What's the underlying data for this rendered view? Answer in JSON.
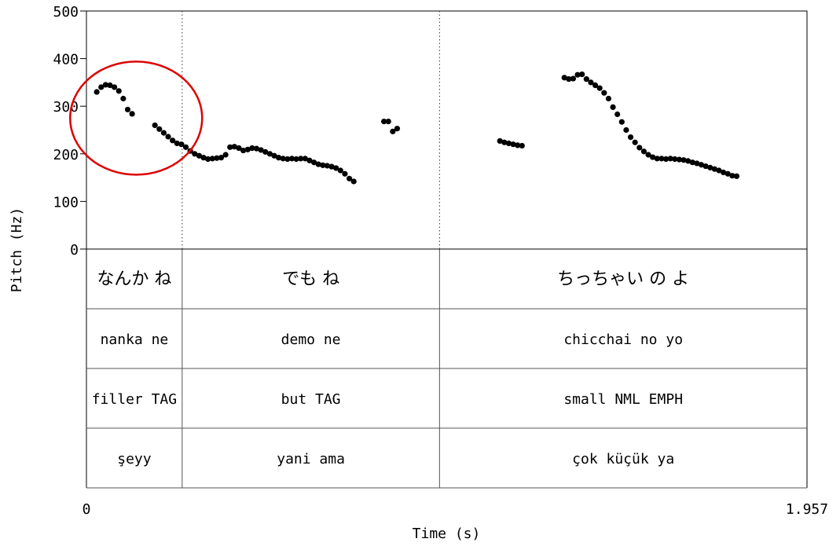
{
  "chart_data": {
    "type": "scatter",
    "title": "",
    "xlabel": "Time (s)",
    "ylabel": "Pitch (Hz)",
    "xlim": [
      0,
      1.957
    ],
    "ylim": [
      0,
      500
    ],
    "y_ticks": [
      "500",
      "400",
      "300",
      "200",
      "100",
      "0"
    ],
    "y_tick_values": [
      500,
      400,
      300,
      200,
      100,
      0
    ],
    "x_tick_labels": [
      "0",
      "1.957"
    ],
    "interval_boundaries": [
      0.26,
      0.959
    ],
    "series": [
      {
        "values": [
          [
            0.028,
            330
          ],
          [
            0.04,
            340
          ],
          [
            0.052,
            345
          ],
          [
            0.064,
            344
          ],
          [
            0.076,
            340
          ],
          [
            0.088,
            332
          ],
          [
            0.1,
            316
          ],
          [
            0.112,
            293
          ],
          [
            0.124,
            284
          ],
          [
            0.186,
            260
          ],
          [
            0.198,
            252
          ],
          [
            0.21,
            244
          ],
          [
            0.222,
            236
          ],
          [
            0.234,
            228
          ],
          [
            0.246,
            222
          ],
          [
            0.258,
            220
          ],
          [
            0.27,
            214
          ],
          [
            0.282,
            206
          ],
          [
            0.294,
            200
          ],
          [
            0.306,
            196
          ],
          [
            0.318,
            192
          ],
          [
            0.33,
            189
          ],
          [
            0.342,
            190
          ],
          [
            0.354,
            191
          ],
          [
            0.366,
            192
          ],
          [
            0.378,
            198
          ],
          [
            0.39,
            214
          ],
          [
            0.402,
            215
          ],
          [
            0.414,
            212
          ],
          [
            0.426,
            207
          ],
          [
            0.438,
            209
          ],
          [
            0.45,
            212
          ],
          [
            0.462,
            211
          ],
          [
            0.474,
            208
          ],
          [
            0.486,
            204
          ],
          [
            0.498,
            200
          ],
          [
            0.51,
            196
          ],
          [
            0.522,
            192
          ],
          [
            0.534,
            190
          ],
          [
            0.546,
            189
          ],
          [
            0.558,
            190
          ],
          [
            0.57,
            189
          ],
          [
            0.582,
            190
          ],
          [
            0.594,
            190
          ],
          [
            0.606,
            186
          ],
          [
            0.618,
            182
          ],
          [
            0.63,
            178
          ],
          [
            0.642,
            176
          ],
          [
            0.654,
            175
          ],
          [
            0.666,
            173
          ],
          [
            0.678,
            170
          ],
          [
            0.69,
            165
          ],
          [
            0.702,
            158
          ],
          [
            0.714,
            148
          ],
          [
            0.726,
            142
          ],
          [
            0.808,
            268
          ],
          [
            0.82,
            268
          ],
          [
            0.832,
            247
          ],
          [
            0.844,
            253
          ],
          [
            1.123,
            227
          ],
          [
            1.135,
            224
          ],
          [
            1.147,
            222
          ],
          [
            1.159,
            220
          ],
          [
            1.171,
            218
          ],
          [
            1.183,
            217
          ],
          [
            1.298,
            360
          ],
          [
            1.31,
            357
          ],
          [
            1.322,
            358
          ],
          [
            1.334,
            366
          ],
          [
            1.346,
            367
          ],
          [
            1.358,
            357
          ],
          [
            1.37,
            350
          ],
          [
            1.382,
            344
          ],
          [
            1.394,
            338
          ],
          [
            1.406,
            328
          ],
          [
            1.418,
            316
          ],
          [
            1.43,
            298
          ],
          [
            1.442,
            283
          ],
          [
            1.454,
            267
          ],
          [
            1.466,
            250
          ],
          [
            1.478,
            235
          ],
          [
            1.49,
            224
          ],
          [
            1.502,
            213
          ],
          [
            1.514,
            205
          ],
          [
            1.526,
            198
          ],
          [
            1.538,
            193
          ],
          [
            1.55,
            190
          ],
          [
            1.562,
            190
          ],
          [
            1.574,
            189
          ],
          [
            1.586,
            190
          ],
          [
            1.598,
            189
          ],
          [
            1.61,
            188
          ],
          [
            1.622,
            187
          ],
          [
            1.634,
            185
          ],
          [
            1.646,
            182
          ],
          [
            1.658,
            180
          ],
          [
            1.67,
            177
          ],
          [
            1.682,
            174
          ],
          [
            1.694,
            171
          ],
          [
            1.706,
            168
          ],
          [
            1.718,
            165
          ],
          [
            1.73,
            161
          ],
          [
            1.742,
            158
          ],
          [
            1.754,
            154
          ],
          [
            1.766,
            153
          ]
        ]
      }
    ],
    "annotation": {
      "shape": "circle",
      "color": "#dd0000",
      "center": [
        0.135,
        275
      ]
    }
  },
  "tiers": [
    {
      "name": "japanese",
      "labels": [
        "なんか ね",
        "でも ね",
        "ちっちゃい の よ"
      ]
    },
    {
      "name": "romaji",
      "labels": [
        "nanka ne",
        "demo ne",
        "chicchai no yo"
      ]
    },
    {
      "name": "gloss",
      "labels": [
        "filler TAG",
        "but TAG",
        "small NML EMPH"
      ]
    },
    {
      "name": "turkish",
      "labels": [
        "şeyy",
        "yani ama",
        "çok küçük ya"
      ]
    }
  ],
  "colors": {
    "points": "#000000",
    "axis": "#000000",
    "tier_lines": "#555555",
    "annotation": "#dd0000"
  }
}
